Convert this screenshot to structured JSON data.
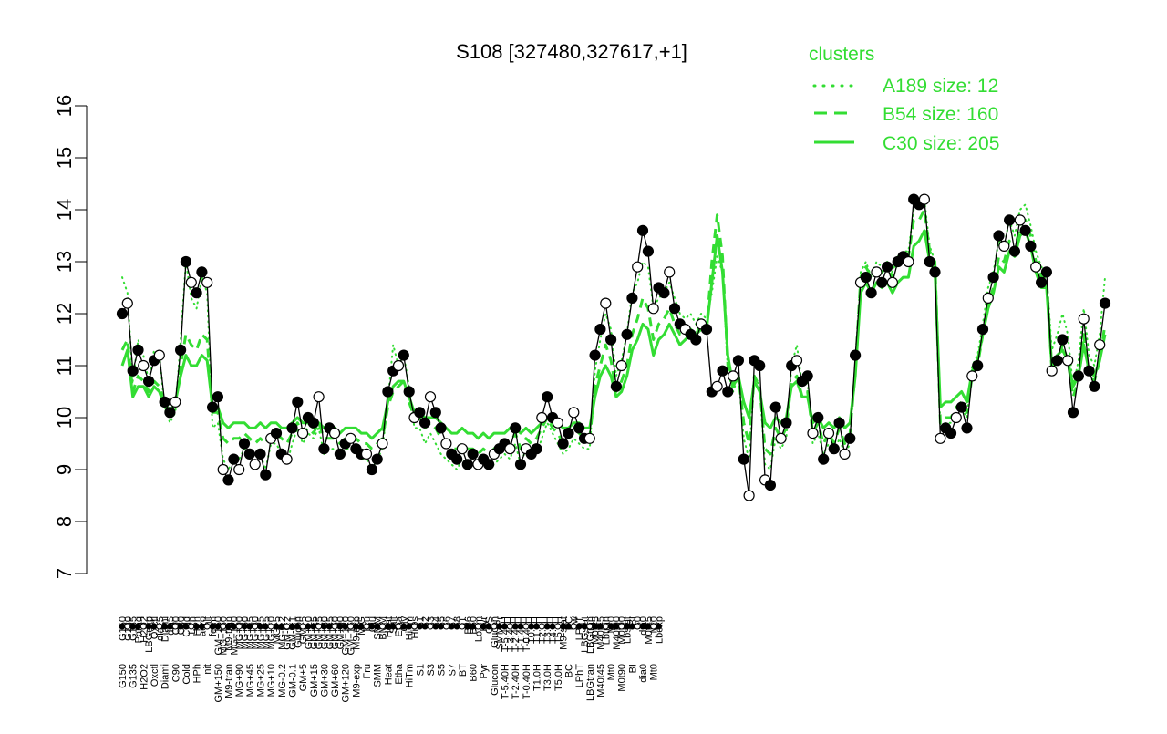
{
  "chart_data": {
    "type": "line",
    "title": "S108 [327480,327617,+1]",
    "xlabel": "",
    "ylabel": "",
    "ylim": [
      7,
      16
    ],
    "yticks": [
      7,
      8,
      9,
      10,
      11,
      12,
      13,
      14,
      15,
      16
    ],
    "grid": false,
    "legend": {
      "title": "clusters",
      "placement": "top-right",
      "entries": [
        "A189 size: 12",
        "B54 size: 160",
        "C30 size: 205"
      ],
      "color": "#33dd33"
    },
    "x_tick_labels": [
      "G150",
      "G180",
      "G135",
      "Paraq",
      "H2O2",
      "LBGexp",
      "Oxctl",
      "dia15",
      "Diami",
      "dia5",
      "C90",
      "C30",
      "Cold",
      "LPh",
      "HPh",
      "aero",
      "nit",
      "ferm",
      "GM+150",
      "MG+150",
      "M9-tran",
      "MG+120",
      "MG+90",
      "MG+60",
      "MG+45",
      "MG+30",
      "MG+25",
      "MG+15",
      "MG+10",
      "MG+5",
      "MG-0.2",
      "GM-0.2",
      "GM-0.1",
      "Glucon",
      "GM+5",
      "GM+10",
      "GM+15",
      "GM+25",
      "GM+30",
      "GM+45",
      "GM+60",
      "GM+90",
      "GM+120",
      "GM+150",
      "M9-exp",
      "M/G",
      "Fru",
      "Glu",
      "SMM",
      "BMM",
      "Heat",
      "Salt",
      "Etha",
      "Gly",
      "HiTm",
      "HiOs",
      "S1",
      "S2",
      "S3",
      "S4",
      "S5",
      "S6",
      "S7",
      "S8",
      "BT",
      "B36",
      "B60",
      "LoTm",
      "Pyr",
      "G/S",
      "Glucon",
      "SMMPr",
      "T-5.40H",
      "T-3.40H",
      "T-2.40H",
      "T-1.40H",
      "T-0.40H",
      "T0.0H",
      "T1.0H",
      "T2.0H",
      "T3.0H",
      "T4.0H",
      "T5.0H",
      "M9-stat",
      "BC",
      "Sw",
      "LPhT",
      "LBGstat",
      "LBGtran",
      "M0t45",
      "M40t45",
      "Lbtran",
      "Mt0",
      "M40t90",
      "M0t90",
      "Lbstat",
      "BI",
      "S0",
      "dia0",
      "M0t45",
      "Mt0",
      "Lbexp"
    ],
    "series": [
      {
        "name": "",
        "role": "probe",
        "values": [
          12.0,
          12.2,
          10.9,
          11.3,
          11.0,
          10.7,
          11.1,
          11.2,
          10.3,
          10.1,
          10.3,
          11.3,
          13.0,
          12.6,
          12.4,
          12.8,
          12.6,
          10.2,
          10.4,
          9.0,
          8.8,
          9.2,
          9.0,
          9.5,
          9.3,
          9.1,
          9.3,
          8.9,
          9.6,
          9.7,
          9.3,
          9.2,
          9.8,
          10.3,
          9.7,
          10.0,
          9.9,
          10.4,
          9.4,
          9.8,
          9.7,
          9.3,
          9.5,
          9.6,
          9.4,
          9.3,
          9.3,
          9.0,
          9.2,
          9.5,
          10.5,
          10.9,
          11.0,
          11.2,
          10.5,
          10.0,
          10.1,
          9.9,
          10.4,
          10.1,
          9.8,
          9.5,
          9.3,
          9.2,
          9.4,
          9.1,
          9.3,
          9.1,
          9.2,
          9.1,
          9.3,
          9.4,
          9.5,
          9.4,
          9.8,
          9.1,
          9.4,
          9.3,
          9.4,
          10.0,
          10.4,
          10.0,
          9.9,
          9.5,
          9.7,
          10.1,
          9.8,
          9.6,
          9.6,
          11.2,
          11.7,
          12.2,
          11.5,
          10.6,
          11.0,
          11.6,
          12.3,
          12.9,
          13.6,
          13.2,
          12.1,
          12.5,
          12.4,
          12.8,
          12.1,
          11.8,
          11.7,
          11.6,
          11.5,
          11.8,
          11.7,
          10.5,
          10.6,
          10.9,
          10.5,
          10.8,
          11.1,
          9.2,
          8.5,
          11.1,
          11.0,
          8.8,
          8.7,
          10.2,
          9.6,
          9.9,
          11.0,
          11.1,
          10.7,
          10.8,
          9.7,
          10.0,
          9.2,
          9.7,
          9.4,
          9.9,
          9.3,
          9.6,
          11.2,
          12.6,
          12.7,
          12.4,
          12.8,
          12.6,
          12.9,
          12.6,
          13.0,
          13.1,
          13.0,
          14.2,
          14.1,
          14.2,
          13.0,
          12.8,
          9.6,
          9.8,
          9.7,
          10.0,
          10.2,
          9.8,
          10.8,
          11.0,
          11.7,
          12.3,
          12.7,
          13.5,
          13.3,
          13.8,
          13.2,
          13.8,
          13.6,
          13.3,
          12.9,
          12.6,
          12.8,
          10.9,
          11.1,
          11.5,
          11.1,
          10.1,
          10.8,
          11.9,
          10.9,
          10.6,
          11.4,
          12.2
        ]
      },
      {
        "name": "C30 size: 205",
        "role": "cluster-mean",
        "style": "solid",
        "values": [
          11.0,
          11.3,
          10.4,
          10.6,
          10.6,
          10.4,
          10.6,
          10.5,
          10.2,
          10.1,
          10.3,
          10.8,
          11.2,
          11.0,
          11.0,
          11.2,
          11.1,
          10.2,
          10.2,
          9.9,
          9.8,
          9.9,
          9.9,
          9.9,
          9.8,
          9.8,
          9.9,
          9.8,
          9.9,
          9.9,
          9.8,
          9.8,
          9.9,
          10.0,
          9.9,
          9.9,
          9.8,
          9.9,
          9.8,
          9.8,
          9.8,
          9.7,
          9.8,
          9.8,
          9.8,
          9.7,
          9.7,
          9.6,
          9.7,
          9.8,
          10.3,
          10.6,
          10.7,
          10.7,
          10.4,
          10.1,
          10.1,
          10.0,
          10.0,
          10.0,
          9.9,
          9.8,
          9.7,
          9.7,
          9.8,
          9.7,
          9.7,
          9.6,
          9.7,
          9.6,
          9.7,
          9.7,
          9.7,
          9.8,
          9.8,
          9.7,
          9.8,
          9.7,
          9.8,
          9.9,
          10.0,
          9.9,
          9.9,
          9.8,
          9.8,
          9.9,
          9.9,
          9.8,
          9.8,
          10.4,
          10.8,
          11.0,
          10.8,
          10.4,
          10.5,
          10.8,
          11.3,
          11.5,
          11.8,
          11.7,
          11.2,
          11.5,
          11.6,
          11.8,
          11.6,
          11.4,
          11.5,
          11.6,
          11.6,
          11.7,
          11.7,
          12.6,
          13.5,
          12.8,
          11.2,
          10.6,
          10.8,
          10.3,
          10.0,
          10.7,
          10.5,
          9.9,
          9.8,
          10.0,
          9.9,
          10.0,
          10.6,
          10.7,
          10.4,
          10.4,
          9.9,
          10.0,
          9.8,
          9.9,
          9.8,
          10.0,
          9.8,
          9.9,
          10.8,
          12.4,
          12.6,
          12.4,
          12.6,
          12.5,
          12.6,
          12.4,
          12.6,
          12.7,
          12.7,
          13.3,
          13.4,
          13.6,
          13.0,
          12.8,
          10.2,
          10.3,
          10.3,
          10.4,
          10.5,
          10.3,
          10.9,
          11.1,
          11.6,
          12.1,
          12.4,
          12.9,
          12.8,
          13.2,
          13.1,
          13.5,
          13.6,
          13.3,
          12.8,
          12.5,
          12.5,
          11.0,
          11.2,
          11.3,
          11.1,
          10.6,
          10.8,
          11.4,
          10.9,
          10.8,
          11.1,
          11.6
        ]
      },
      {
        "name": "B54 size: 160",
        "role": "cluster-mean",
        "style": "dashed",
        "values": [
          11.3,
          11.5,
          10.5,
          10.8,
          10.7,
          10.5,
          10.7,
          10.6,
          10.3,
          10.1,
          10.3,
          11.0,
          11.6,
          11.4,
          11.3,
          11.6,
          11.5,
          10.1,
          10.1,
          9.6,
          9.5,
          9.6,
          9.6,
          9.7,
          9.6,
          9.5,
          9.6,
          9.5,
          9.7,
          9.7,
          9.6,
          9.5,
          9.7,
          9.9,
          9.7,
          9.8,
          9.7,
          9.9,
          9.6,
          9.6,
          9.6,
          9.5,
          9.6,
          9.6,
          9.6,
          9.5,
          9.5,
          9.4,
          9.5,
          9.6,
          10.2,
          10.5,
          10.6,
          10.7,
          10.3,
          10.0,
          10.0,
          9.8,
          9.9,
          9.8,
          9.6,
          9.5,
          9.4,
          9.4,
          9.5,
          9.4,
          9.4,
          9.3,
          9.4,
          9.3,
          9.4,
          9.5,
          9.5,
          9.5,
          9.7,
          9.4,
          9.6,
          9.5,
          9.6,
          9.8,
          10.0,
          9.8,
          9.7,
          9.5,
          9.6,
          9.8,
          9.7,
          9.6,
          9.6,
          10.6,
          11.0,
          11.4,
          11.1,
          10.5,
          10.7,
          11.0,
          11.6,
          11.9,
          12.3,
          12.1,
          11.5,
          11.8,
          11.9,
          12.1,
          11.8,
          11.6,
          11.6,
          11.7,
          11.6,
          11.8,
          11.7,
          13.0,
          13.9,
          13.1,
          11.0,
          10.6,
          10.8,
          9.9,
          9.5,
          10.8,
          10.6,
          9.4,
          9.3,
          9.8,
          9.6,
          9.8,
          10.7,
          10.8,
          10.4,
          10.5,
          9.7,
          9.9,
          9.5,
          9.7,
          9.5,
          9.8,
          9.5,
          9.7,
          10.9,
          12.7,
          12.9,
          12.7,
          12.9,
          12.8,
          12.9,
          12.7,
          13.0,
          13.1,
          13.1,
          13.8,
          13.8,
          14.0,
          13.2,
          13.0,
          9.9,
          10.0,
          10.0,
          10.2,
          10.3,
          10.1,
          10.8,
          11.0,
          11.6,
          12.2,
          12.5,
          13.1,
          13.0,
          13.4,
          13.2,
          13.7,
          13.8,
          13.5,
          13.0,
          12.7,
          12.7,
          10.9,
          11.1,
          11.4,
          11.1,
          10.4,
          10.7,
          11.6,
          10.8,
          10.7,
          11.1,
          11.8
        ]
      },
      {
        "name": "A189 size: 12",
        "role": "cluster-mean",
        "style": "dotted",
        "values": [
          12.7,
          12.4,
          10.7,
          11.5,
          11.2,
          10.7,
          11.3,
          11.2,
          10.2,
          9.9,
          10.1,
          11.5,
          13.0,
          12.3,
          12.1,
          12.7,
          12.4,
          9.8,
          9.9,
          9.2,
          9.0,
          9.2,
          9.2,
          9.4,
          9.3,
          9.1,
          9.3,
          9.0,
          9.5,
          9.5,
          9.3,
          9.1,
          9.5,
          9.8,
          9.5,
          9.7,
          9.6,
          9.8,
          9.3,
          9.4,
          9.4,
          9.2,
          9.4,
          9.4,
          9.4,
          9.2,
          9.2,
          9.0,
          9.2,
          9.4,
          10.3,
          11.4,
          11.0,
          11.2,
          10.6,
          9.8,
          9.8,
          9.5,
          9.7,
          9.5,
          9.3,
          9.2,
          9.1,
          9.0,
          9.2,
          9.0,
          9.1,
          9.0,
          9.1,
          9.0,
          9.1,
          9.2,
          9.3,
          9.2,
          9.5,
          9.1,
          9.4,
          9.2,
          9.3,
          9.6,
          9.9,
          9.7,
          9.5,
          9.3,
          9.4,
          9.6,
          9.5,
          9.4,
          9.4,
          10.9,
          11.5,
          12.0,
          11.7,
          10.8,
          11.1,
          11.6,
          12.4,
          12.6,
          13.0,
          12.9,
          12.1,
          12.3,
          12.4,
          12.6,
          12.3,
          12.0,
          11.9,
          12.0,
          11.8,
          12.0,
          11.9,
          12.4,
          13.1,
          12.8,
          10.9,
          10.5,
          10.8,
          9.6,
          9.2,
          10.8,
          10.6,
          9.1,
          9.0,
          9.6,
          9.4,
          9.6,
          11.0,
          11.4,
          10.6,
          10.7,
          9.5,
          9.7,
          9.3,
          9.5,
          9.3,
          9.6,
          9.3,
          9.5,
          11.0,
          12.8,
          13.0,
          12.7,
          13.0,
          12.9,
          13.0,
          12.8,
          13.1,
          13.2,
          13.2,
          14.0,
          14.1,
          14.2,
          13.3,
          13.0,
          9.8,
          9.9,
          9.9,
          10.0,
          10.2,
          10.0,
          11.0,
          11.2,
          11.8,
          12.5,
          12.8,
          13.4,
          13.3,
          13.8,
          13.5,
          14.0,
          14.1,
          13.7,
          13.2,
          12.9,
          12.8,
          11.3,
          11.6,
          12.0,
          11.6,
          10.6,
          11.1,
          12.1,
          11.2,
          11.0,
          11.6,
          12.7
        ]
      }
    ]
  }
}
